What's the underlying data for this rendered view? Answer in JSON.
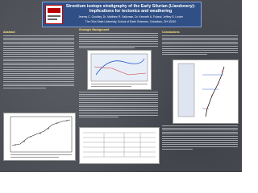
{
  "header": {
    "title": "Strontium isotope stratigraphy of the Early Silurian (Llandovery): Implications for tectonics and weathering",
    "authors": "Jeremy C. Gouldey, Dr. Matthew R. Saltzman, Dr. Kenneth A. Foland, Jeffrey S. Linder",
    "affiliation": "The Ohio State University, School of Earth Sciences, Columbus, OH 43210"
  },
  "sections": [
    {
      "heading": "Abstract"
    },
    {
      "heading": "Geologic Background"
    },
    {
      "heading": "Conclusions"
    }
  ]
}
